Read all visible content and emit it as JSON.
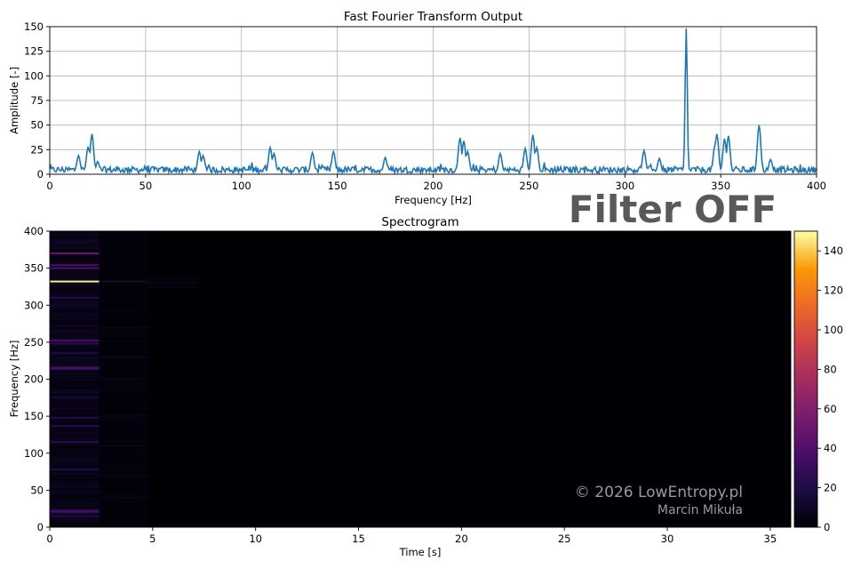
{
  "overlay_label": "Filter OFF",
  "watermark": {
    "line1": "© 2026 LowEntropy.pl",
    "line2": "Marcin Mikuła"
  },
  "colors": {
    "line": "#1f77b4",
    "grid": "#b0b0b0",
    "background_dark": "#000004"
  },
  "chart_data": [
    {
      "type": "line",
      "title": "Fast Fourier Transform Output",
      "xlabel": "Frequency [Hz]",
      "ylabel": "Amplitude [-]",
      "xlim": [
        0,
        400
      ],
      "ylim": [
        0,
        150
      ],
      "xticks": [
        0,
        50,
        100,
        150,
        200,
        250,
        300,
        350,
        400
      ],
      "yticks": [
        0,
        25,
        50,
        75,
        100,
        125,
        150
      ],
      "grid": true,
      "noise_level": 5,
      "series": [
        {
          "peaks": [
            {
              "x": 15,
              "y": 18
            },
            {
              "x": 20,
              "y": 27
            },
            {
              "x": 22,
              "y": 40
            },
            {
              "x": 25,
              "y": 12
            },
            {
              "x": 78,
              "y": 22
            },
            {
              "x": 80,
              "y": 18
            },
            {
              "x": 115,
              "y": 26
            },
            {
              "x": 117,
              "y": 20
            },
            {
              "x": 137,
              "y": 21
            },
            {
              "x": 148,
              "y": 22
            },
            {
              "x": 175,
              "y": 16
            },
            {
              "x": 214,
              "y": 36
            },
            {
              "x": 216,
              "y": 33
            },
            {
              "x": 218,
              "y": 22
            },
            {
              "x": 235,
              "y": 20
            },
            {
              "x": 248,
              "y": 25
            },
            {
              "x": 252,
              "y": 39
            },
            {
              "x": 254,
              "y": 26
            },
            {
              "x": 310,
              "y": 23
            },
            {
              "x": 318,
              "y": 15
            },
            {
              "x": 332,
              "y": 147
            },
            {
              "x": 347,
              "y": 29
            },
            {
              "x": 348,
              "y": 40
            },
            {
              "x": 352,
              "y": 35
            },
            {
              "x": 354,
              "y": 38
            },
            {
              "x": 370,
              "y": 49
            },
            {
              "x": 376,
              "y": 14
            }
          ]
        }
      ]
    },
    {
      "type": "heatmap",
      "title": "Spectrogram",
      "xlabel": "Time [s]",
      "ylabel": "Frequency [Hz]",
      "xlim": [
        0,
        36
      ],
      "ylim": [
        0,
        400
      ],
      "xticks": [
        0,
        5,
        10,
        15,
        20,
        25,
        30,
        35
      ],
      "yticks": [
        0,
        50,
        100,
        150,
        200,
        250,
        300,
        350,
        400
      ],
      "colorbar": {
        "min": 0,
        "max": 150,
        "ticks": [
          0,
          20,
          40,
          60,
          80,
          100,
          120,
          140
        ],
        "colormap": "inferno"
      },
      "segments": [
        {
          "t_start": 0,
          "t_end": 2.4,
          "bands": [
            {
              "f": 332,
              "a": 147
            },
            {
              "f": 370,
              "a": 49
            },
            {
              "f": 350,
              "a": 40
            },
            {
              "f": 354,
              "a": 38
            },
            {
              "f": 252,
              "a": 39
            },
            {
              "f": 248,
              "a": 25
            },
            {
              "f": 214,
              "a": 36
            },
            {
              "f": 216,
              "a": 33
            },
            {
              "f": 22,
              "a": 40
            },
            {
              "f": 20,
              "a": 27
            },
            {
              "f": 115,
              "a": 26
            },
            {
              "f": 78,
              "a": 22
            },
            {
              "f": 137,
              "a": 21
            },
            {
              "f": 148,
              "a": 22
            },
            {
              "f": 310,
              "a": 23
            },
            {
              "f": 235,
              "a": 20
            },
            {
              "f": 175,
              "a": 16
            },
            {
              "f": 15,
              "a": 18
            }
          ],
          "background": 6
        },
        {
          "t_start": 2.4,
          "t_end": 4.8,
          "bands": [
            {
              "f": 332,
              "a": 14
            },
            {
              "f": 270,
              "a": 7
            },
            {
              "f": 230,
              "a": 8
            },
            {
              "f": 200,
              "a": 6
            },
            {
              "f": 150,
              "a": 7
            },
            {
              "f": 110,
              "a": 6
            },
            {
              "f": 70,
              "a": 8
            },
            {
              "f": 40,
              "a": 6
            }
          ],
          "background": 2
        },
        {
          "t_start": 4.8,
          "t_end": 7.2,
          "bands": [
            {
              "f": 336,
              "a": 7
            },
            {
              "f": 330,
              "a": 8
            },
            {
              "f": 325,
              "a": 6
            }
          ],
          "background": 0
        }
      ]
    }
  ]
}
